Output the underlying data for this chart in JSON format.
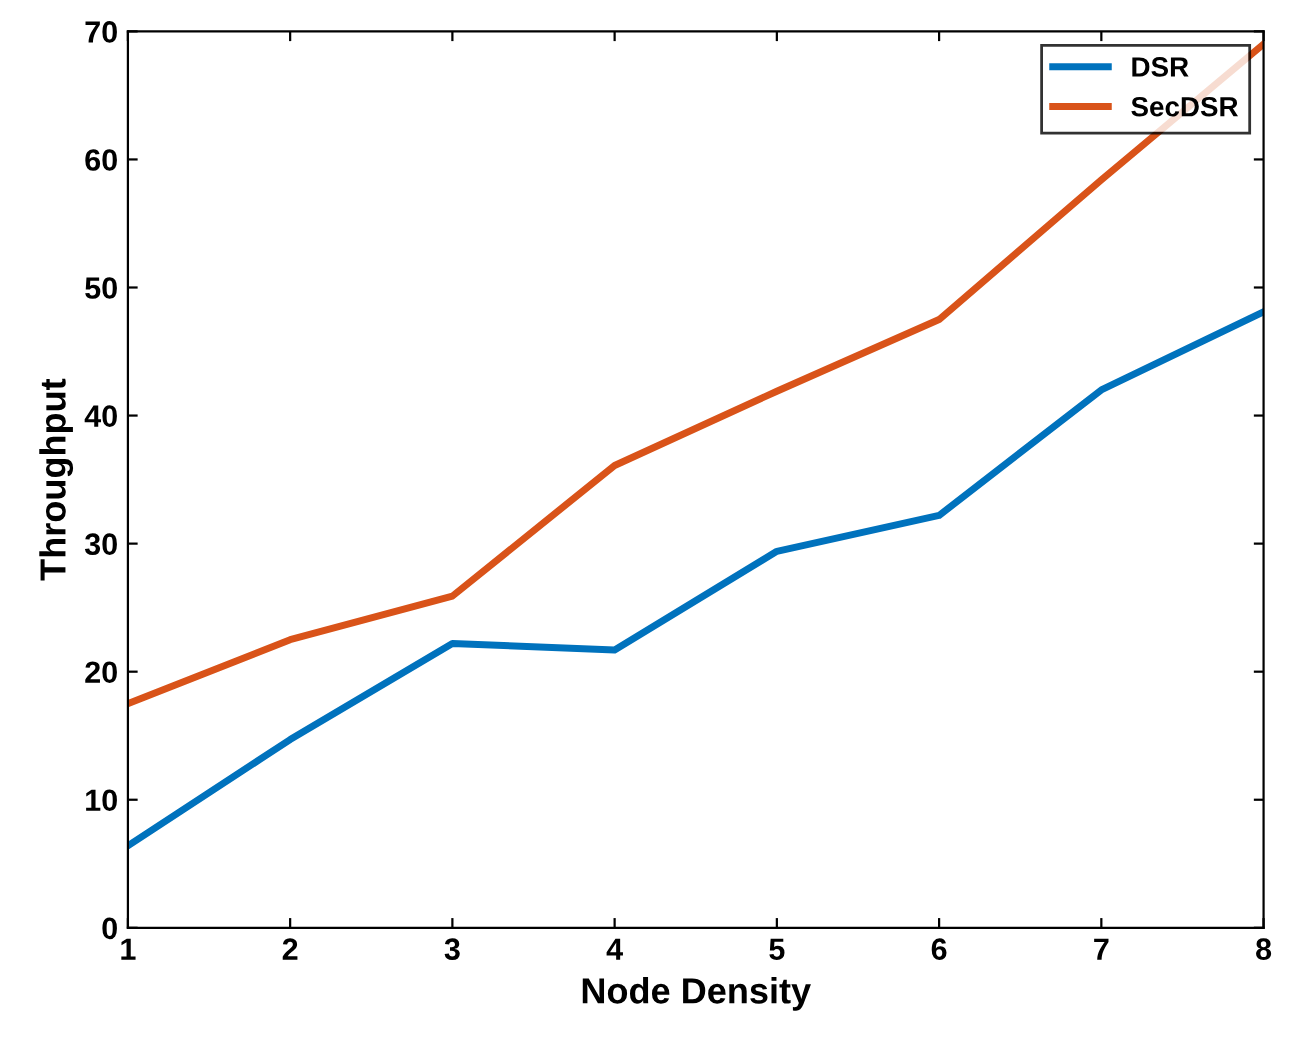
{
  "chart_data": {
    "type": "line",
    "xlabel": "Node Density",
    "ylabel": "Throughput",
    "x": [
      1,
      2,
      3,
      4,
      5,
      6,
      7,
      8
    ],
    "series": [
      {
        "name": "DSR",
        "color": "#0072bd",
        "values": [
          6.4,
          14.7,
          22.2,
          21.7,
          29.4,
          32.2,
          42.0,
          48.1
        ]
      },
      {
        "name": "SecDSR",
        "color": "#d95319",
        "values": [
          17.5,
          22.5,
          25.9,
          36.1,
          41.9,
          47.5,
          58.4,
          69.0
        ]
      }
    ],
    "xlim": [
      1,
      8
    ],
    "xticks": [
      1,
      2,
      3,
      4,
      5,
      6,
      7,
      8
    ],
    "ylim": [
      0,
      70
    ],
    "yticks": [
      0,
      10,
      20,
      30,
      40,
      50,
      60,
      70
    ],
    "grid": false,
    "legend": "top right",
    "marker": "none",
    "line_style": "solid"
  }
}
